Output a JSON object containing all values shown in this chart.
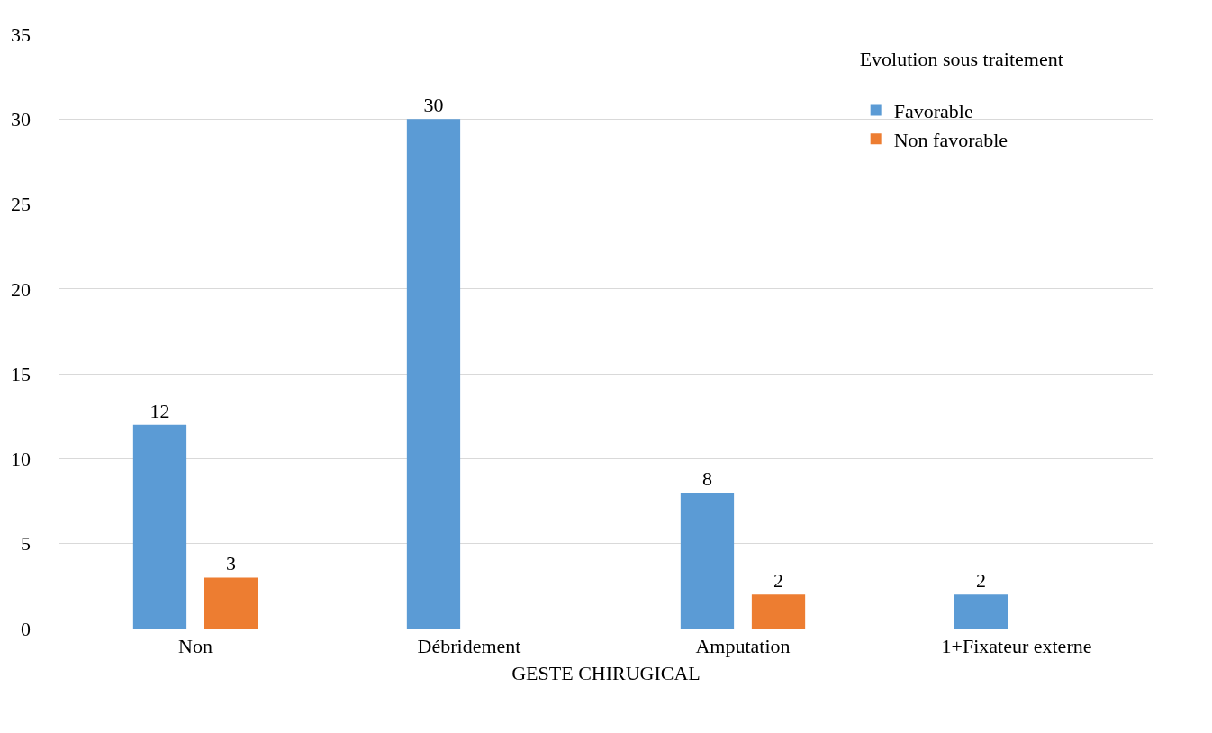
{
  "chart_data": {
    "type": "bar",
    "xlabel": "GESTE CHIRUGICAL",
    "legend_title": "Evolution sous traitement",
    "categories": [
      "Non",
      "Débridement",
      "Amputation",
      "1+Fixateur externe"
    ],
    "series": [
      {
        "name": "Favorable",
        "color": "#5b9bd5",
        "values": [
          12,
          30,
          8,
          2
        ]
      },
      {
        "name": "Non favorable",
        "color": "#ed7d31",
        "values": [
          3,
          null,
          2,
          null
        ]
      }
    ],
    "ylim": [
      0,
      35
    ],
    "yticks": [
      0,
      5,
      10,
      15,
      20,
      25,
      30,
      35
    ],
    "grid": "y",
    "legend": "top right",
    "data_labels": true
  }
}
